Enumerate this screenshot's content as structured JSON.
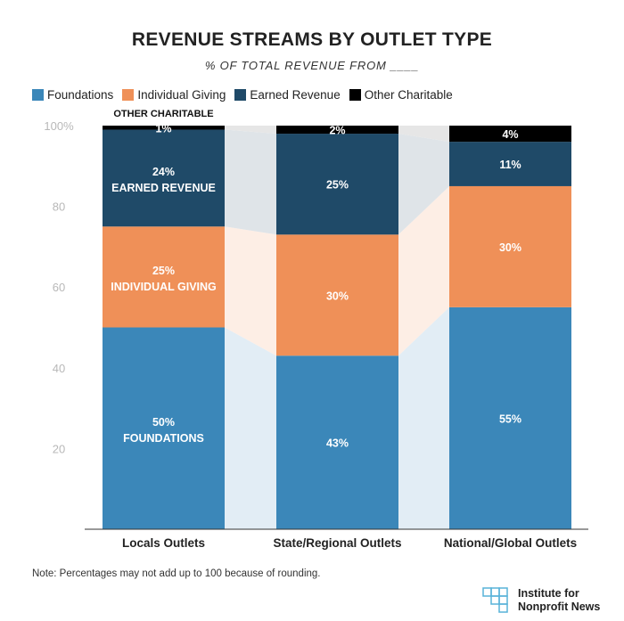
{
  "title": "REVENUE STREAMS BY OUTLET TYPE",
  "subtitle": "% OF TOTAL REVENUE FROM ____",
  "note": "Note: Percentages may not add up to 100 because of rounding.",
  "logo": {
    "line1": "Institute for",
    "line2": "Nonprofit News"
  },
  "colors": {
    "Foundations": "#3b87b9",
    "Individual Giving": "#ef9058",
    "Earned Revenue": "#1f4a68",
    "Other Charitable": "#000000"
  },
  "chart_data": {
    "type": "bar",
    "stacked": true,
    "categories": [
      "Locals Outlets",
      "State/Regional Outlets",
      "National/Global Outlets"
    ],
    "ylim": [
      0,
      100
    ],
    "yticks": [
      20,
      40,
      60,
      80,
      100
    ],
    "ytick_labels": [
      "20",
      "40",
      "60",
      "80",
      "100%"
    ],
    "legend_position": "top-left",
    "series": [
      {
        "name": "Foundations",
        "values": [
          50,
          43,
          55
        ],
        "labels": [
          "50%",
          "43%",
          "55%"
        ]
      },
      {
        "name": "Individual Giving",
        "values": [
          25,
          30,
          30
        ],
        "labels": [
          "25%",
          "30%",
          "30%"
        ]
      },
      {
        "name": "Earned Revenue",
        "values": [
          24,
          25,
          11
        ],
        "labels": [
          "24%",
          "25%",
          "11%"
        ]
      },
      {
        "name": "Other Charitable",
        "values": [
          1,
          2,
          4
        ],
        "labels": [
          "1%",
          "2%",
          "4%"
        ]
      }
    ],
    "annotations": {
      "Foundations": "FOUNDATIONS",
      "Individual Giving": "INDIVIDUAL GIVING",
      "Earned Revenue": "EARNED REVENUE",
      "Other Charitable": "OTHER CHARITABLE"
    }
  }
}
